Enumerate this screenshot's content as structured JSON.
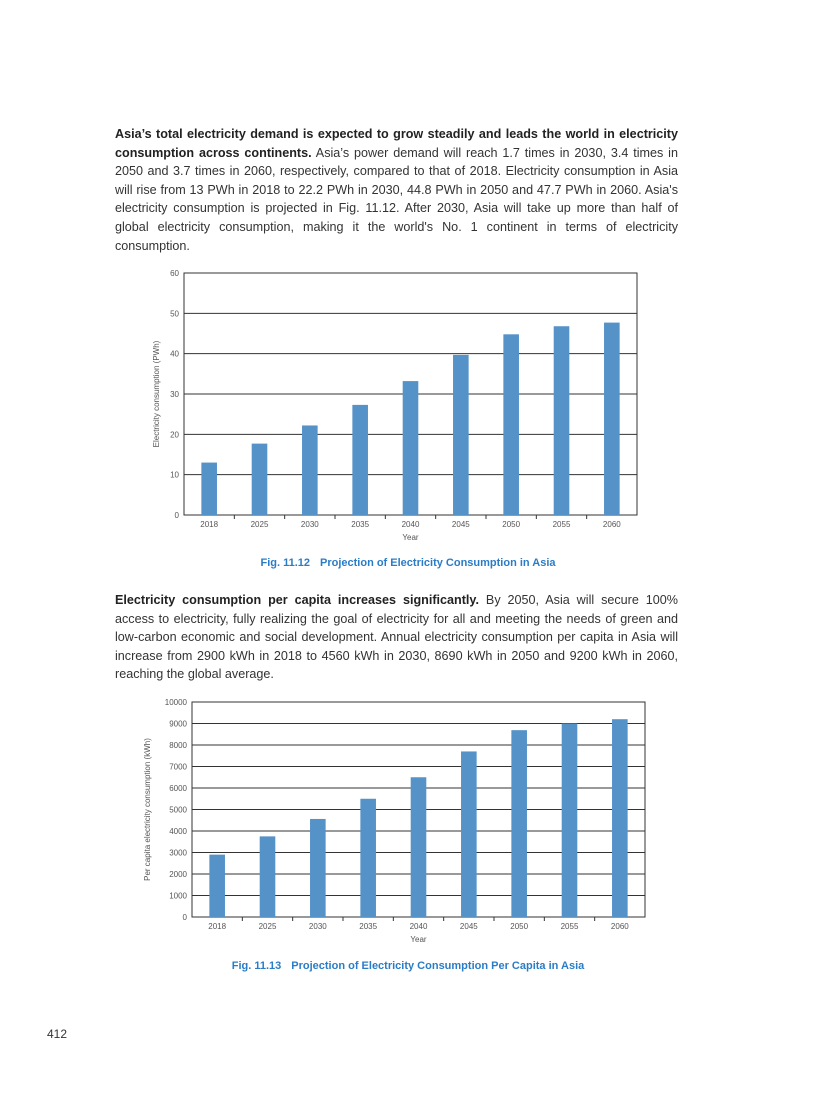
{
  "paragraph1": {
    "lead": "Asia’s total electricity demand is expected to grow steadily and leads the world in electricity consumption across continents.",
    "body": " Asia’s power demand will reach 1.7 times in 2030, 3.4 times in 2050 and 3.7 times in 2060, respectively, compared to that of 2018. Electricity consumption in Asia will rise from 13 PWh in 2018 to 22.2 PWh in 2030, 44.8 PWh in 2050 and 47.7 PWh in 2060. Asia's electricity consumption is projected in Fig. 11.12. After 2030, Asia will take up more than half of global electricity consumption, making it the world's No. 1 continent in terms of electricity consumption."
  },
  "paragraph2": {
    "lead": "Electricity consumption per capita increases significantly.",
    "body": " By 2050, Asia will secure 100% access to electricity, fully realizing the goal of electricity for all and meeting the needs of green and low-carbon economic and social development. Annual electricity consumption per capita in Asia will increase from 2900 kWh in 2018 to 4560 kWh in 2030, 8690 kWh in 2050 and 9200 kWh in 2060, reaching the global average."
  },
  "figure1": {
    "number": "Fig. 11.12",
    "title": "Projection of Electricity Consumption in Asia"
  },
  "figure2": {
    "number": "Fig. 11.13",
    "title": "Projection of Electricity Consumption Per Capita in Asia"
  },
  "page_number": "412",
  "chart_data": [
    {
      "type": "bar",
      "categories": [
        "2018",
        "2025",
        "2030",
        "2035",
        "2040",
        "2045",
        "2050",
        "2055",
        "2060"
      ],
      "values": [
        13,
        17.7,
        22.2,
        27.3,
        33.2,
        39.7,
        44.8,
        46.8,
        47.7
      ],
      "xlabel": "Year",
      "ylabel": "Electricity consumption (PWh)",
      "ylim": [
        0,
        60
      ],
      "yticks": [
        0,
        10,
        20,
        30,
        40,
        50,
        60
      ],
      "grid": true,
      "bar_color": "#5592c8"
    },
    {
      "type": "bar",
      "categories": [
        "2018",
        "2025",
        "2030",
        "2035",
        "2040",
        "2045",
        "2050",
        "2055",
        "2060"
      ],
      "values": [
        2900,
        3750,
        4560,
        5500,
        6500,
        7700,
        8690,
        9000,
        9200
      ],
      "xlabel": "Year",
      "ylabel": "Per capita electricity consumption (kWh)",
      "ylim": [
        0,
        10000
      ],
      "yticks": [
        0,
        1000,
        2000,
        3000,
        4000,
        5000,
        6000,
        7000,
        8000,
        9000,
        10000
      ],
      "grid": true,
      "bar_color": "#5592c8"
    }
  ]
}
